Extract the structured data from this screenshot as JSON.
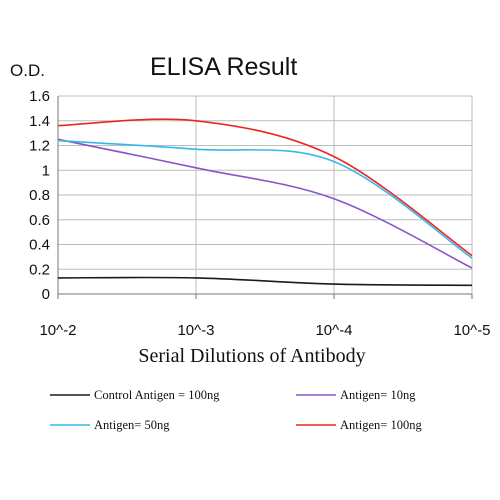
{
  "chart_data": {
    "type": "line",
    "title": "ELISA Result",
    "ylabel": "O.D.",
    "xlabel": "Serial Dilutions of Antibody",
    "x_ticks": [
      "10^-2",
      "10^-3",
      "10^-4",
      "10^-5"
    ],
    "y_ticks": [
      "0",
      "0.2",
      "0.4",
      "0.6",
      "0.8",
      "1",
      "1.2",
      "1.4",
      "1.6"
    ],
    "ylim": [
      0,
      1.6
    ],
    "grid": true,
    "legend_position": "bottom",
    "series": [
      {
        "name": "Control Antigen = 100ng",
        "color": "#1a1a1a",
        "values": [
          0.13,
          0.13,
          0.08,
          0.07
        ]
      },
      {
        "name": "Antigen= 10ng",
        "color": "#8855c8",
        "values": [
          1.25,
          1.02,
          0.77,
          0.21
        ]
      },
      {
        "name": "Antigen= 50ng",
        "color": "#35b8ec",
        "values": [
          1.24,
          1.17,
          1.07,
          0.29
        ]
      },
      {
        "name": "Antigen= 100ng",
        "color": "#ee2424",
        "values": [
          1.36,
          1.4,
          1.11,
          0.31
        ]
      }
    ]
  }
}
